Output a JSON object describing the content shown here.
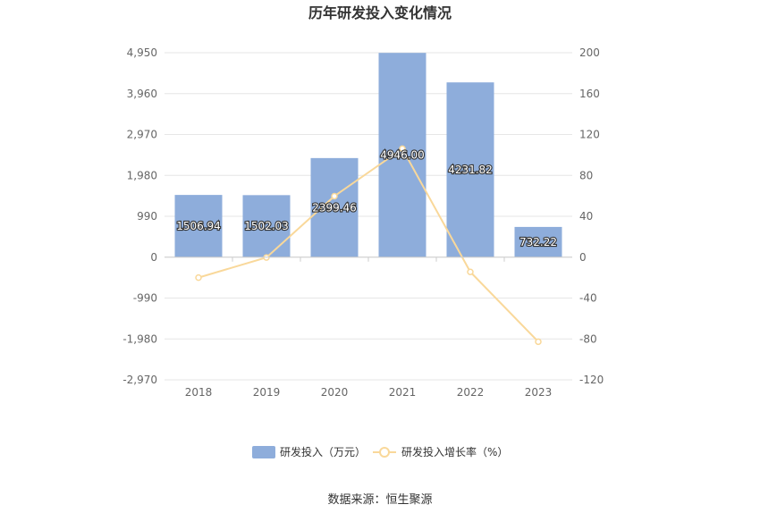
{
  "chart_data": {
    "type": "bar",
    "title": "历年研发投入变化情况",
    "categories": [
      "2018",
      "2019",
      "2020",
      "2021",
      "2022",
      "2023"
    ],
    "series": [
      {
        "name": "研发投入（万元）",
        "type": "bar",
        "axis": "left",
        "color": "#8eaddb",
        "values": [
          1506.94,
          1502.03,
          2399.46,
          4946.0,
          4231.82,
          732.22
        ],
        "labels": [
          "1506.94",
          "1502.03",
          "2399.46",
          "4946.00",
          "4231.82",
          "732.22"
        ]
      },
      {
        "name": "研发投入增长率（%）",
        "type": "line",
        "axis": "right",
        "color": "#f9d89a",
        "values": [
          -20,
          -0.3,
          59.7,
          106.1,
          -14.4,
          -82.7
        ]
      }
    ],
    "y_left": {
      "ylim": [
        -2970,
        4950
      ],
      "ticks": [
        4950,
        3960,
        2970,
        1980,
        990,
        0,
        -990,
        -1980,
        -2970
      ],
      "tick_labels": [
        "4,950",
        "3,960",
        "2,970",
        "1,980",
        "990",
        "0",
        "-990",
        "-1,980",
        "-2,970"
      ]
    },
    "y_right": {
      "ylim": [
        -120,
        200
      ],
      "ticks": [
        200,
        160,
        120,
        80,
        40,
        0,
        -40,
        -80,
        -120
      ],
      "tick_labels": [
        "200",
        "160",
        "120",
        "80",
        "40",
        "0",
        "-40",
        "-80",
        "-120"
      ]
    },
    "grid": true,
    "legend_position": "bottom-center"
  },
  "source": "数据来源：恒生聚源"
}
